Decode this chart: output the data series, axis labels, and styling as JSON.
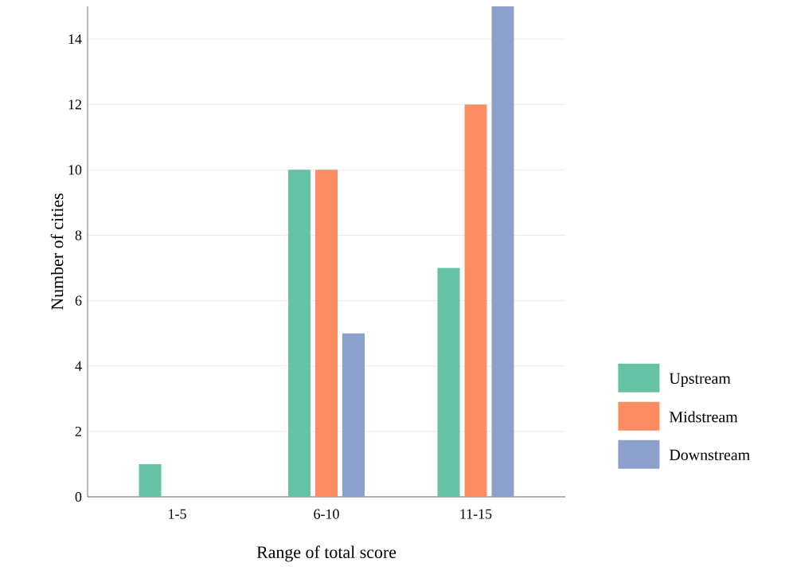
{
  "chart_data": {
    "type": "bar",
    "xlabel": "Range of total score",
    "ylabel": "Number of cities",
    "categories": [
      "1-5",
      "6-10",
      "11-15"
    ],
    "series": [
      {
        "name": "Upstream",
        "color": "#66c2a5",
        "values": [
          1,
          10,
          7
        ]
      },
      {
        "name": "Midstream",
        "color": "#fc8d62",
        "values": [
          0,
          10,
          12
        ]
      },
      {
        "name": "Downstream",
        "color": "#8da0cb",
        "values": [
          0,
          5,
          15
        ]
      }
    ],
    "ylim": [
      0,
      15
    ],
    "yticks": [
      0,
      2,
      4,
      6,
      8,
      10,
      12,
      14
    ],
    "grid": "y",
    "legend": "right"
  }
}
